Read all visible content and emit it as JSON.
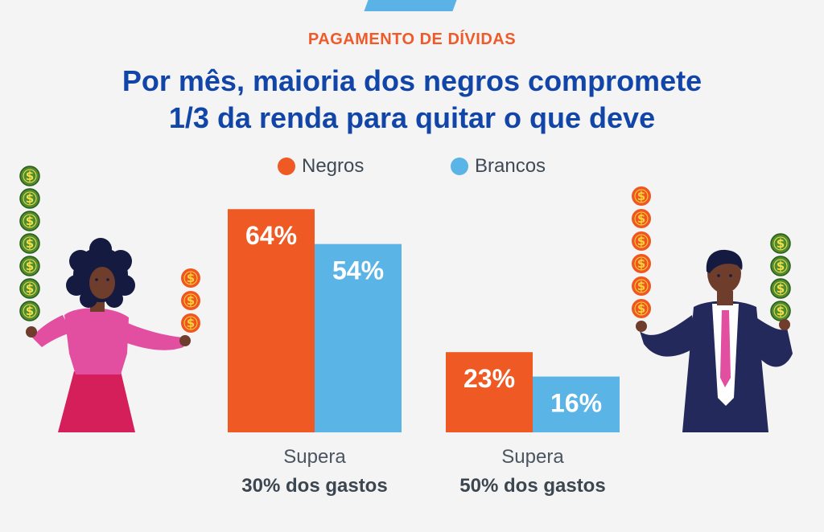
{
  "kicker": "PAGAMENTO DE DÍVIDAS",
  "title_line1": "Por mês, maioria dos negros compromete",
  "title_line2": "1/3 da renda para quitar o que deve",
  "colors": {
    "negros": "#ef5a24",
    "brancos": "#5ab4e6",
    "title": "#1245a8",
    "kicker": "#ef5a2a",
    "coin_green": "#4e8a2f",
    "coin_orange": "#f0561f"
  },
  "illustrations": {
    "left": "woman-holding-coins-icon",
    "right": "man-holding-coins-icon",
    "coin_symbol": "$"
  },
  "chart_data": {
    "type": "bar",
    "categories": [
      {
        "line1": "Supera",
        "line2": "30% dos gastos"
      },
      {
        "line1": "Supera",
        "line2": "50% dos gastos"
      }
    ],
    "series": [
      {
        "name": "Negros",
        "values": [
          64,
          23
        ],
        "labels": [
          "64%",
          "23%"
        ]
      },
      {
        "name": "Brancos",
        "values": [
          54,
          16
        ],
        "labels": [
          "54%",
          "16%"
        ]
      }
    ],
    "unit": "%",
    "ylim": [
      0,
      100
    ],
    "legend": "top-center",
    "grid": false
  }
}
